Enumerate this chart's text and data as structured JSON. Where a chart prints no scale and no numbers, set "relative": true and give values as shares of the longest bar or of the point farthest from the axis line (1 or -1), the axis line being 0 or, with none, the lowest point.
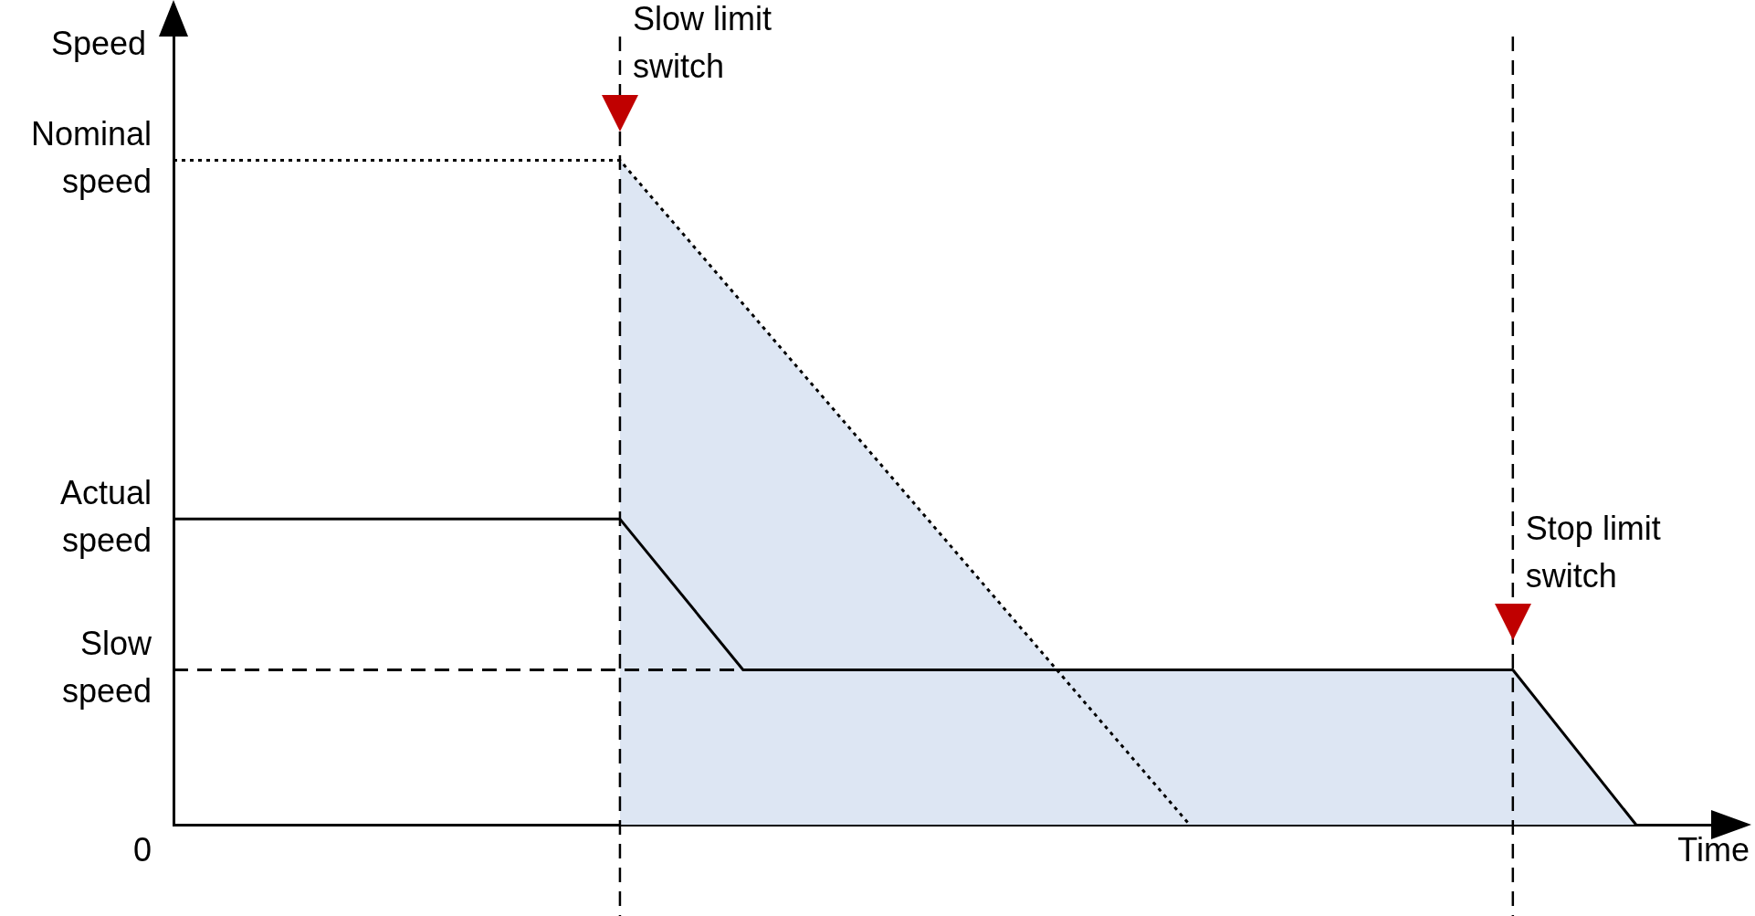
{
  "chart_data": {
    "type": "line",
    "relative": true,
    "ylabel": "Speed",
    "xlabel": "Time",
    "grid": false,
    "legend": false,
    "marker": "none",
    "categories": [
      null,
      null,
      null,
      null,
      null,
      null,
      null,
      null,
      null,
      null,
      null,
      null,
      null,
      null,
      null,
      null,
      null,
      null,
      null,
      null,
      null,
      null,
      null,
      null,
      null,
      null,
      null,
      null,
      null,
      null,
      null,
      null,
      null,
      null,
      null,
      null,
      null,
      null,
      null,
      null,
      null,
      null,
      null,
      null,
      null,
      null,
      null,
      null,
      null,
      null,
      null,
      null,
      null,
      null,
      null,
      null,
      null,
      null,
      null,
      null,
      null,
      null,
      null,
      null,
      null,
      null,
      null,
      null,
      null,
      null,
      null,
      null,
      null,
      null,
      null,
      null,
      null,
      null,
      null,
      null,
      null,
      null,
      null,
      null,
      null,
      null,
      null,
      null,
      null,
      null,
      null,
      null,
      null,
      null,
      null,
      null,
      null,
      null,
      null,
      null,
      null
    ],
    "annotations": [
      "Nominal speed",
      "Actual speed",
      "Slow speed",
      "0",
      "Slow limit switch",
      "Stop limit switch"
    ],
    "series": [
      {
        "color": "#000000",
        "line_style": "solid",
        "values": [
          0.46,
          null,
          null,
          null,
          null,
          null,
          null,
          null,
          null,
          null,
          null,
          null,
          null,
          null,
          null,
          null,
          null,
          null,
          null,
          null,
          null,
          null,
          null,
          null,
          null,
          null,
          null,
          null,
          null,
          0.46,
          null,
          null,
          null,
          null,
          null,
          null,
          null,
          null,
          null,
          null,
          null,
          null,
          null,
          null,
          null,
          null,
          null,
          null,
          null,
          null,
          null,
          null,
          null,
          null,
          null,
          null,
          null,
          null,
          null,
          null,
          null,
          null,
          null,
          null,
          null,
          null,
          null,
          null,
          null,
          null,
          null,
          null,
          null,
          null,
          null,
          null,
          null,
          null,
          null,
          null,
          null,
          null,
          null,
          null,
          null,
          null,
          null,
          null,
          null,
          null,
          null,
          null,
          null,
          null,
          null,
          null,
          null,
          null,
          null,
          null,
          null
        ]
      },
      {
        "color": "#000000",
        "line_style": "dotted",
        "values": [
          1,
          null,
          null,
          null,
          null,
          null,
          null,
          null,
          null,
          null,
          null,
          null,
          null,
          null,
          null,
          null,
          null,
          null,
          null,
          null,
          null,
          null,
          null,
          null,
          null,
          null,
          null,
          null,
          null,
          1,
          null,
          null,
          null,
          null,
          null,
          null,
          null,
          null,
          null,
          null,
          null,
          null,
          null,
          null,
          null,
          null,
          null,
          null,
          null,
          null,
          null,
          null,
          null,
          null,
          null,
          null,
          null,
          null,
          null,
          null,
          null,
          null,
          null,
          null,
          null,
          null,
          0,
          null,
          null,
          null,
          null,
          null,
          null,
          null,
          null,
          null,
          null,
          null,
          null,
          null,
          null,
          null,
          null,
          null,
          null,
          null,
          null,
          null,
          null,
          null,
          null,
          null,
          null,
          null,
          null,
          null,
          null,
          null,
          null,
          null,
          null
        ]
      },
      {
        "color": "#000000",
        "line_style": "dashed",
        "values": [
          0.233,
          null,
          null,
          null,
          null,
          null,
          null,
          null,
          null,
          null,
          null,
          null,
          null,
          null,
          null,
          null,
          null,
          null,
          null,
          null,
          null,
          null,
          null,
          null,
          null,
          null,
          null,
          null,
          null,
          null,
          null,
          null,
          null,
          null,
          null,
          null,
          null,
          0.233,
          null,
          null,
          null,
          null,
          null,
          null,
          null,
          null,
          null,
          null,
          null,
          null,
          null,
          null,
          null,
          null,
          null,
          null,
          null,
          null,
          null,
          null,
          null,
          null,
          null,
          null,
          null,
          null,
          null,
          null,
          null,
          null,
          null,
          null,
          null,
          null,
          null,
          null,
          null,
          null,
          null,
          null,
          null,
          null,
          null,
          null,
          null,
          null,
          null,
          null,
          null,
          null,
          null,
          null,
          null,
          null,
          null,
          null,
          null,
          null,
          null,
          null,
          null
        ]
      },
      {
        "type": "area",
        "color": "#dde6f3",
        "values": [
          null,
          null,
          null,
          null,
          null,
          null,
          null,
          null,
          null,
          null,
          null,
          null,
          null,
          null,
          null,
          null,
          null,
          null,
          null,
          null,
          null,
          null,
          null,
          null,
          null,
          null,
          null,
          null,
          null,
          1,
          null,
          null,
          null,
          null,
          null,
          null,
          null,
          null,
          null,
          null,
          null,
          null,
          null,
          null,
          null,
          null,
          null,
          null,
          null,
          null,
          null,
          null,
          null,
          null,
          null,
          null,
          null,
          null,
          null,
          null,
          null,
          null,
          null,
          null,
          null,
          null,
          0,
          null,
          null,
          null,
          null,
          null,
          null,
          null,
          null,
          null,
          null,
          null,
          null,
          null,
          null,
          null,
          null,
          null,
          null,
          null,
          null,
          null,
          null,
          null,
          null,
          null,
          null,
          null,
          null,
          null,
          null,
          null,
          null,
          null,
          null
        ]
      },
      {
        "type": "area",
        "color": "#dde6f3",
        "values": [
          null,
          null,
          null,
          null,
          null,
          null,
          null,
          null,
          null,
          null,
          null,
          null,
          null,
          null,
          null,
          null,
          null,
          null,
          null,
          null,
          null,
          null,
          null,
          null,
          null,
          null,
          null,
          null,
          null,
          0.46,
          null,
          null,
          null,
          null,
          null,
          null,
          null,
          0.233,
          null,
          null,
          null,
          null,
          null,
          null,
          null,
          null,
          null,
          null,
          null,
          null,
          null,
          null,
          null,
          null,
          null,
          null,
          null,
          null,
          null,
          null,
          null,
          null,
          null,
          null,
          null,
          null,
          null,
          null,
          null,
          null,
          null,
          null,
          null,
          null,
          null,
          null,
          null,
          null,
          null,
          null,
          null,
          null,
          null,
          null,
          null,
          null,
          null,
          0.233,
          null,
          null,
          null,
          null,
          null,
          null,
          null,
          0,
          null,
          null,
          null,
          null,
          null
        ]
      }
    ]
  }
}
